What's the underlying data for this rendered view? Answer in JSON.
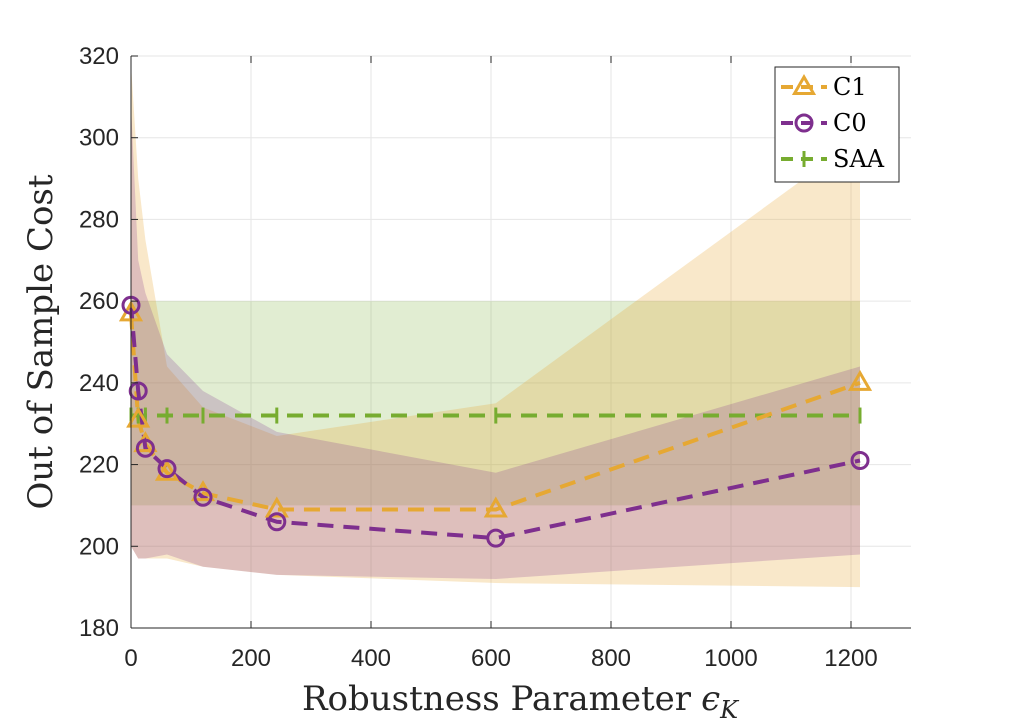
{
  "chart_data": {
    "type": "line",
    "title": "",
    "xlabel": "Robustness Parameter",
    "xlabel_symbol": "ϵ",
    "xlabel_subscript": "K",
    "ylabel": "Out of Sample Cost",
    "xlim": [
      0,
      1300
    ],
    "ylim": [
      180,
      320
    ],
    "x_ticks": [
      "0",
      "200",
      "400",
      "600",
      "800",
      "1000",
      "1200"
    ],
    "y_ticks": [
      "180",
      "200",
      "220",
      "240",
      "260",
      "280",
      "300",
      "320"
    ],
    "grid": true,
    "legend_position": "top-right",
    "series": [
      {
        "name": "C1",
        "color": "#E6A833",
        "marker": "triangle",
        "line": "dashed",
        "x": [
          0,
          12,
          24,
          60,
          120,
          243,
          608,
          1215
        ],
        "y": [
          257,
          231,
          225,
          218,
          213,
          209,
          209,
          240
        ],
        "band_upper": [
          318,
          290,
          275,
          244,
          234,
          227,
          235,
          300
        ],
        "band_lower": [
          200,
          197,
          197,
          197,
          195,
          193,
          191,
          190
        ]
      },
      {
        "name": "C0",
        "color": "#7E2F8E",
        "marker": "circle",
        "line": "dashed",
        "x": [
          0,
          12,
          24,
          60,
          120,
          243,
          608,
          1215
        ],
        "y": [
          259,
          238,
          224,
          219,
          212,
          206,
          202,
          221
        ],
        "band_upper": [
          308,
          270,
          262,
          247,
          238,
          228,
          218,
          244
        ],
        "band_lower": [
          200,
          197,
          197,
          198,
          195,
          193,
          192,
          198
        ]
      },
      {
        "name": "SAA",
        "color": "#77AC30",
        "marker": "vertical-bar",
        "line": "dashed",
        "x": [
          0,
          12,
          24,
          60,
          120,
          243,
          608,
          1215
        ],
        "y": [
          232,
          232,
          232,
          232,
          232,
          232,
          232,
          232
        ],
        "band_upper": [
          260,
          260,
          260,
          260,
          260,
          260,
          260,
          260
        ],
        "band_lower": [
          210,
          210,
          210,
          210,
          210,
          210,
          210,
          210
        ]
      }
    ]
  }
}
